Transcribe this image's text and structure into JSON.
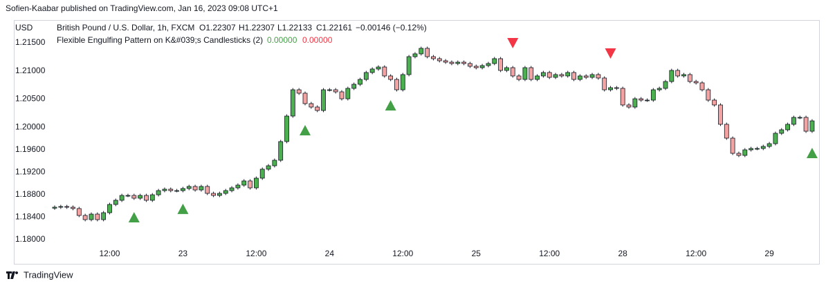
{
  "header": {
    "published": "Sofien-Kaabar published on TradingView.com, Jan 16, 2023 09:08 UTC+1"
  },
  "footer": {
    "brand": "TradingView"
  },
  "chart_data": {
    "type": "candlestick",
    "axis_unit": "USD",
    "symbol": "British Pound / U.S. Dollar, 1h, FXCM",
    "ohlc_legend": [
      "O1.22307",
      "H1.22307",
      "L1.22133",
      "C1.22161",
      "−0.00146 (−0.12%)"
    ],
    "indicator": {
      "name": "Flexible Engulfing Pattern on K&#039;s Candlesticks (2)",
      "values": [
        {
          "text": "0.00000",
          "color": "#43a047"
        },
        {
          "text": "0.00000",
          "color": "#f23645"
        }
      ]
    },
    "up_color": "#4caf50",
    "down_color": "#f4a3a3",
    "wick_color": "#131722",
    "ylim": [
      1.1757,
      1.21893
    ],
    "yticks": [
      {
        "value": 1.215,
        "label": "1.21500"
      },
      {
        "value": 1.21,
        "label": "1.21000"
      },
      {
        "value": 1.205,
        "label": "1.20500"
      },
      {
        "value": 1.2,
        "label": "1.20000"
      },
      {
        "value": 1.196,
        "label": "1.19600"
      },
      {
        "value": 1.192,
        "label": "1.19200"
      },
      {
        "value": 1.188,
        "label": "1.18800"
      },
      {
        "value": 1.184,
        "label": "1.18400"
      },
      {
        "value": 1.18,
        "label": "1.18000"
      }
    ],
    "grid": false,
    "categories": [
      null,
      null,
      null,
      null,
      null,
      null,
      null,
      null,
      null,
      "12:00",
      null,
      null,
      null,
      null,
      null,
      null,
      null,
      null,
      null,
      null,
      null,
      "23",
      null,
      null,
      null,
      null,
      null,
      null,
      null,
      null,
      null,
      null,
      null,
      "12:00",
      null,
      null,
      null,
      null,
      null,
      null,
      null,
      null,
      null,
      null,
      null,
      "24",
      null,
      null,
      null,
      null,
      null,
      null,
      null,
      null,
      null,
      null,
      null,
      "12:00",
      null,
      null,
      null,
      null,
      null,
      null,
      null,
      null,
      null,
      null,
      null,
      "25",
      null,
      null,
      null,
      null,
      null,
      null,
      null,
      null,
      null,
      null,
      null,
      "12:00",
      null,
      null,
      null,
      null,
      null,
      null,
      null,
      null,
      null,
      null,
      null,
      "28",
      null,
      null,
      null,
      null,
      null,
      null,
      null,
      null,
      null,
      null,
      null,
      "12:00",
      null,
      null,
      null,
      null,
      null,
      null,
      null,
      null,
      null,
      null,
      null,
      "29",
      null,
      null,
      null,
      null,
      null,
      null,
      null
    ],
    "open": [
      1.1856,
      1.18577,
      1.18589,
      1.18577,
      1.18553,
      1.1843,
      1.18356,
      1.18454,
      1.18356,
      1.18479,
      1.18626,
      1.187,
      1.18786,
      1.18786,
      1.18737,
      1.18786,
      1.187,
      1.18798,
      1.18872,
      1.18897,
      1.18872,
      1.18872,
      1.18909,
      1.18946,
      1.18884,
      1.18946,
      1.18823,
      1.18786,
      1.18823,
      1.18872,
      1.18921,
      1.1897,
      1.19044,
      1.18921,
      1.19093,
      1.19253,
      1.19314,
      1.19412,
      1.19744,
      1.20198,
      1.20665,
      1.20604,
      1.20419,
      1.20358,
      1.20297,
      1.20665,
      1.20665,
      1.20628,
      1.20505,
      1.2069,
      1.20763,
      1.20849,
      1.20972,
      1.21034,
      1.2107,
      1.20911,
      1.20849,
      1.20665,
      1.20935,
      1.21254,
      1.21304,
      1.21402,
      1.21254,
      1.21218,
      1.21181,
      1.21156,
      1.21132,
      1.21156,
      1.21132,
      1.21083,
      1.21058,
      1.21095,
      1.21132,
      1.21218,
      1.21009,
      1.21058,
      1.20911,
      1.20849,
      1.21058,
      1.20849,
      1.20911,
      1.20972,
      1.20886,
      1.20935,
      1.20911,
      1.20972,
      1.20849,
      1.20911,
      1.20886,
      1.20935,
      1.20874,
      1.20665,
      1.20702,
      1.2069,
      1.20395,
      1.20358,
      1.20505,
      1.20481,
      1.20481,
      1.20665,
      1.2069,
      1.20812,
      1.21009,
      1.20911,
      1.20935,
      1.20812,
      1.20788,
      1.20665,
      1.20481,
      1.20395,
      1.20051,
      1.19805,
      1.19535,
      1.19498,
      1.19597,
      1.19621,
      1.19621,
      1.19658,
      1.19707,
      1.19891,
      1.19953,
      1.20051,
      1.20174,
      1.20174,
      1.19928
    ],
    "high": [
      1.18607,
      1.18619,
      1.18619,
      1.18607,
      1.18583,
      1.1846,
      1.18484,
      1.18484,
      1.18509,
      1.18656,
      1.1873,
      1.18816,
      1.18816,
      1.18816,
      1.18816,
      1.18816,
      1.18828,
      1.18902,
      1.18927,
      1.18927,
      1.18902,
      1.18939,
      1.18976,
      1.18976,
      1.18976,
      1.18976,
      1.18853,
      1.18853,
      1.18902,
      1.18951,
      1.19,
      1.19074,
      1.19074,
      1.19123,
      1.19283,
      1.19344,
      1.19442,
      1.19774,
      1.20228,
      1.20695,
      1.20695,
      1.20634,
      1.20449,
      1.20388,
      1.20695,
      1.20695,
      1.20695,
      1.20658,
      1.2072,
      1.20793,
      1.20879,
      1.21002,
      1.21064,
      1.211,
      1.211,
      1.20941,
      1.20879,
      1.20965,
      1.21284,
      1.21334,
      1.21432,
      1.21432,
      1.21284,
      1.21248,
      1.21211,
      1.21186,
      1.21186,
      1.21186,
      1.21162,
      1.21113,
      1.21125,
      1.21162,
      1.21248,
      1.21248,
      1.21088,
      1.21088,
      1.20941,
      1.21088,
      1.21088,
      1.20941,
      1.21002,
      1.21002,
      1.20965,
      1.20965,
      1.21002,
      1.21002,
      1.20941,
      1.20941,
      1.20965,
      1.20965,
      1.20904,
      1.20732,
      1.20732,
      1.2072,
      1.20425,
      1.20535,
      1.20535,
      1.20511,
      1.20695,
      1.2072,
      1.20842,
      1.21039,
      1.21039,
      1.20965,
      1.20965,
      1.20842,
      1.20818,
      1.20695,
      1.20511,
      1.20425,
      1.20081,
      1.19835,
      1.19565,
      1.19627,
      1.19651,
      1.19651,
      1.19688,
      1.19737,
      1.19921,
      1.19983,
      1.20081,
      1.20204,
      1.20204,
      1.20204,
      1.20142
    ],
    "low": [
      1.1853,
      1.18547,
      1.18547,
      1.18523,
      1.184,
      1.18326,
      1.18326,
      1.18326,
      1.18326,
      1.18449,
      1.18596,
      1.1867,
      1.18756,
      1.18707,
      1.18707,
      1.1867,
      1.1867,
      1.18768,
      1.18842,
      1.18842,
      1.18842,
      1.18842,
      1.18879,
      1.18854,
      1.18854,
      1.18793,
      1.18756,
      1.18756,
      1.18793,
      1.18842,
      1.18891,
      1.1894,
      1.18891,
      1.18891,
      1.19063,
      1.19223,
      1.19284,
      1.19382,
      1.19714,
      1.20168,
      1.20574,
      1.20389,
      1.20328,
      1.20267,
      1.20267,
      1.20635,
      1.20598,
      1.20475,
      1.20475,
      1.2066,
      1.20733,
      1.20819,
      1.20942,
      1.21004,
      1.20881,
      1.20819,
      1.20635,
      1.20635,
      1.20905,
      1.21224,
      1.21274,
      1.21224,
      1.21188,
      1.21151,
      1.21126,
      1.21102,
      1.21102,
      1.21102,
      1.21053,
      1.21028,
      1.21028,
      1.21065,
      1.21102,
      1.20979,
      1.20979,
      1.20881,
      1.20819,
      1.20819,
      1.20819,
      1.20819,
      1.20881,
      1.20856,
      1.20856,
      1.20881,
      1.20881,
      1.20819,
      1.20819,
      1.20856,
      1.20856,
      1.20844,
      1.20635,
      1.20635,
      1.2066,
      1.20365,
      1.20328,
      1.20328,
      1.20451,
      1.20451,
      1.20451,
      1.20635,
      1.2066,
      1.20782,
      1.20881,
      1.20881,
      1.20782,
      1.20758,
      1.20635,
      1.20451,
      1.20365,
      1.20021,
      1.19775,
      1.19505,
      1.19468,
      1.19468,
      1.19567,
      1.19591,
      1.19591,
      1.19628,
      1.19677,
      1.19861,
      1.19923,
      1.20021,
      1.20144,
      1.19898,
      1.19898
    ],
    "close": [
      1.18577,
      1.18589,
      1.18577,
      1.18553,
      1.1843,
      1.18356,
      1.18454,
      1.18356,
      1.18479,
      1.18626,
      1.187,
      1.18786,
      1.18786,
      1.18737,
      1.18786,
      1.187,
      1.18798,
      1.18872,
      1.18897,
      1.18872,
      1.18872,
      1.18909,
      1.18946,
      1.18884,
      1.18946,
      1.18823,
      1.18786,
      1.18823,
      1.18872,
      1.18921,
      1.1897,
      1.19044,
      1.18921,
      1.19093,
      1.19253,
      1.19314,
      1.19412,
      1.19744,
      1.20198,
      1.20665,
      1.20604,
      1.20419,
      1.20358,
      1.20297,
      1.20665,
      1.20665,
      1.20628,
      1.20505,
      1.2069,
      1.20763,
      1.20849,
      1.20972,
      1.21034,
      1.2107,
      1.20911,
      1.20849,
      1.20665,
      1.20935,
      1.21254,
      1.21304,
      1.21402,
      1.21254,
      1.21218,
      1.21181,
      1.21156,
      1.21132,
      1.21156,
      1.21132,
      1.21083,
      1.21058,
      1.21095,
      1.21132,
      1.21218,
      1.21009,
      1.21058,
      1.20911,
      1.20849,
      1.21058,
      1.20849,
      1.20911,
      1.20972,
      1.20886,
      1.20935,
      1.20911,
      1.20972,
      1.20849,
      1.20911,
      1.20886,
      1.20935,
      1.20874,
      1.20665,
      1.20702,
      1.2069,
      1.20395,
      1.20358,
      1.20505,
      1.20481,
      1.20481,
      1.20665,
      1.2069,
      1.20812,
      1.21009,
      1.20911,
      1.20935,
      1.20812,
      1.20788,
      1.20665,
      1.20481,
      1.20395,
      1.20051,
      1.19805,
      1.19535,
      1.19498,
      1.19597,
      1.19621,
      1.19621,
      1.19658,
      1.19707,
      1.19891,
      1.19953,
      1.20051,
      1.20174,
      1.20174,
      1.19928,
      1.20112
    ],
    "markers": [
      {
        "index": 13,
        "y": 1.18393,
        "shape": "triangle-up",
        "color": "#43a047"
      },
      {
        "index": 21,
        "y": 1.18541,
        "shape": "triangle-up",
        "color": "#43a047"
      },
      {
        "index": 41,
        "y": 1.1994,
        "shape": "triangle-up",
        "color": "#43a047"
      },
      {
        "index": 55,
        "y": 1.20383,
        "shape": "triangle-up",
        "color": "#43a047"
      },
      {
        "index": 124,
        "y": 1.19535,
        "shape": "triangle-up",
        "color": "#43a047"
      },
      {
        "index": 75,
        "y": 1.215,
        "shape": "triangle-down",
        "color": "#f23645"
      },
      {
        "index": 91,
        "y": 1.21316,
        "shape": "triangle-down",
        "color": "#f23645"
      }
    ]
  }
}
